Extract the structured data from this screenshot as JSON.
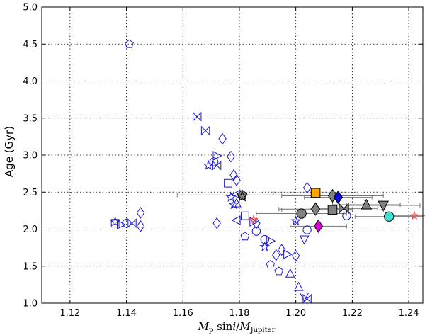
{
  "chart_data": {
    "type": "scatter",
    "xlabel": "M_p sini/M_Jupiter",
    "ylabel": "Age (Gyr)",
    "xlim": [
      1.11,
      1.245
    ],
    "ylim": [
      1.0,
      5.0
    ],
    "xticks": [
      "1.12",
      "1.14",
      "1.16",
      "1.18",
      "1.20",
      "1.22",
      "1.24"
    ],
    "yticks": [
      "1.0",
      "1.5",
      "2.0",
      "2.5",
      "3.0",
      "3.5",
      "4.0",
      "4.5",
      "5.0"
    ],
    "grid": true,
    "colors": {
      "open": "#1a1ad0",
      "filled_gray": "#808080",
      "orange": "#ffa500",
      "blue": "#0b0bd8",
      "magenta": "#e000e0",
      "cyan": "#40e0d0",
      "red": "#ff3b3b"
    },
    "open_points": [
      {
        "x": 1.141,
        "y": 4.5,
        "m": "pentagon"
      },
      {
        "x": 1.165,
        "y": 3.52,
        "m": "bowtie"
      },
      {
        "x": 1.168,
        "y": 3.33,
        "m": "bowtie"
      },
      {
        "x": 1.174,
        "y": 3.22,
        "m": "diamond"
      },
      {
        "x": 1.177,
        "y": 2.98,
        "m": "diamond"
      },
      {
        "x": 1.172,
        "y": 2.99,
        "m": "tri-right"
      },
      {
        "x": 1.171,
        "y": 2.91,
        "m": "circle"
      },
      {
        "x": 1.172,
        "y": 2.86,
        "m": "bowtie"
      },
      {
        "x": 1.169,
        "y": 2.86,
        "m": "star"
      },
      {
        "x": 1.178,
        "y": 2.73,
        "m": "diamond"
      },
      {
        "x": 1.179,
        "y": 2.66,
        "m": "diamond"
      },
      {
        "x": 1.176,
        "y": 2.62,
        "m": "square"
      },
      {
        "x": 1.179,
        "y": 2.47,
        "m": "tri-left"
      },
      {
        "x": 1.177,
        "y": 2.43,
        "m": "star"
      },
      {
        "x": 1.178,
        "y": 2.33,
        "m": "star"
      },
      {
        "x": 1.179,
        "y": 2.35,
        "m": "triangle"
      },
      {
        "x": 1.182,
        "y": 2.18,
        "m": "square"
      },
      {
        "x": 1.179,
        "y": 2.12,
        "m": "tri-left"
      },
      {
        "x": 1.172,
        "y": 2.08,
        "m": "diamond"
      },
      {
        "x": 1.185,
        "y": 2.1,
        "m": "tri-right"
      },
      {
        "x": 1.186,
        "y": 2.08,
        "m": "diamond"
      },
      {
        "x": 1.182,
        "y": 1.9,
        "m": "pentagon"
      },
      {
        "x": 1.186,
        "y": 1.97,
        "m": "circle"
      },
      {
        "x": 1.189,
        "y": 1.86,
        "m": "circle"
      },
      {
        "x": 1.189,
        "y": 1.76,
        "m": "star"
      },
      {
        "x": 1.191,
        "y": 1.84,
        "m": "tri-right"
      },
      {
        "x": 1.193,
        "y": 1.65,
        "m": "diamond"
      },
      {
        "x": 1.195,
        "y": 1.72,
        "m": "diamond"
      },
      {
        "x": 1.197,
        "y": 1.66,
        "m": "tri-right"
      },
      {
        "x": 1.191,
        "y": 1.52,
        "m": "pentagon"
      },
      {
        "x": 1.194,
        "y": 1.43,
        "m": "pentagon"
      },
      {
        "x": 1.2,
        "y": 1.64,
        "m": "diamond"
      },
      {
        "x": 1.198,
        "y": 1.4,
        "m": "triangle"
      },
      {
        "x": 1.201,
        "y": 1.22,
        "m": "triangle"
      },
      {
        "x": 1.203,
        "y": 1.09,
        "m": "tri-down"
      },
      {
        "x": 1.204,
        "y": 1.06,
        "m": "bowtie"
      },
      {
        "x": 1.2,
        "y": 2.11,
        "m": "star"
      },
      {
        "x": 1.204,
        "y": 1.99,
        "m": "circle"
      },
      {
        "x": 1.203,
        "y": 1.86,
        "m": "tri-down"
      },
      {
        "x": 1.204,
        "y": 2.56,
        "m": "diamond"
      },
      {
        "x": 1.218,
        "y": 2.18,
        "m": "circle"
      },
      {
        "x": 1.136,
        "y": 2.08,
        "m": "square"
      },
      {
        "x": 1.136,
        "y": 2.1,
        "m": "star"
      },
      {
        "x": 1.138,
        "y": 2.06,
        "m": "tri-right"
      },
      {
        "x": 1.14,
        "y": 2.08,
        "m": "circle"
      },
      {
        "x": 1.142,
        "y": 2.08,
        "m": "bowtie"
      },
      {
        "x": 1.145,
        "y": 2.22,
        "m": "diamond"
      },
      {
        "x": 1.145,
        "y": 2.04,
        "m": "diamond"
      }
    ],
    "filled_points": [
      {
        "x": 1.181,
        "y": 2.46,
        "m": "pentagon",
        "c": "filled_gray",
        "xerr": 0.023,
        "yerr": 0.05
      },
      {
        "x": 1.181,
        "y": 2.44,
        "m": "star",
        "c": "filled_gray"
      },
      {
        "x": 1.207,
        "y": 2.49,
        "m": "square",
        "c": "orange",
        "xerr": 0.015,
        "yerr": 0.06
      },
      {
        "x": 1.213,
        "y": 2.45,
        "m": "diamond",
        "c": "filled_gray",
        "xerr": 0.018,
        "yerr": 0.06
      },
      {
        "x": 1.215,
        "y": 2.43,
        "m": "diamond",
        "c": "blue",
        "xerr": 0.012
      },
      {
        "x": 1.202,
        "y": 2.21,
        "m": "circle",
        "c": "filled_gray",
        "xerr": 0.016,
        "yerr": 0.05
      },
      {
        "x": 1.207,
        "y": 2.27,
        "m": "diamond",
        "c": "filled_gray",
        "xerr": 0.013,
        "yerr": 0.05
      },
      {
        "x": 1.213,
        "y": 2.26,
        "m": "square",
        "c": "filled_gray",
        "xerr": 0.018,
        "yerr": 0.06
      },
      {
        "x": 1.217,
        "y": 2.28,
        "m": "bowtie",
        "c": "filled_gray",
        "xerr": 0.012
      },
      {
        "x": 1.225,
        "y": 2.33,
        "m": "triangle",
        "c": "filled_gray",
        "xerr": 0.012,
        "yerr": 0.05
      },
      {
        "x": 1.231,
        "y": 2.32,
        "m": "tri-down",
        "c": "filled_gray",
        "xerr": 0.013,
        "yerr": 0.05
      },
      {
        "x": 1.208,
        "y": 2.04,
        "m": "diamond",
        "c": "magenta",
        "xerr": 0.01
      },
      {
        "x": 1.233,
        "y": 2.17,
        "m": "circle",
        "c": "cyan",
        "xerr": 0.012
      },
      {
        "x": 1.242,
        "y": 2.18,
        "m": "star",
        "c": "red",
        "xerr": 0.01
      },
      {
        "x": 1.185,
        "y": 2.13,
        "m": "star",
        "c": "red"
      }
    ]
  }
}
